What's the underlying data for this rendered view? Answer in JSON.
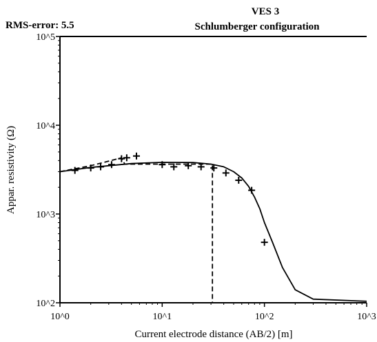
{
  "chart_data": {
    "type": "scatter",
    "title": "VES 3",
    "subtitle": "Schlumberger configuration",
    "annotation": "RMS-error: 5.5",
    "xlabel": "Current electrode distance (AB/2) [m]",
    "ylabel": "Appar. resistivity (Ω)",
    "x_scale": "log",
    "y_scale": "log",
    "xlim": [
      1,
      1000
    ],
    "ylim": [
      100,
      100000
    ],
    "x_ticks": [
      1,
      10,
      100,
      1000
    ],
    "x_tick_labels": [
      "10^0",
      "10^1",
      "10^2",
      "10^3"
    ],
    "y_ticks": [
      100,
      1000,
      10000,
      100000
    ],
    "y_tick_labels": [
      "10^2",
      "10^3",
      "10^4",
      "10^5"
    ],
    "grid": false,
    "series": [
      {
        "style": "markers",
        "marker": "plus",
        "points": [
          {
            "x": 1.4,
            "y": 3100
          },
          {
            "x": 2.0,
            "y": 3300
          },
          {
            "x": 2.5,
            "y": 3400
          },
          {
            "x": 3.2,
            "y": 3600
          },
          {
            "x": 4.0,
            "y": 4200
          },
          {
            "x": 4.5,
            "y": 4300
          },
          {
            "x": 5.6,
            "y": 4500
          },
          {
            "x": 10,
            "y": 3600
          },
          {
            "x": 13,
            "y": 3400
          },
          {
            "x": 18,
            "y": 3500
          },
          {
            "x": 24,
            "y": 3400
          },
          {
            "x": 32,
            "y": 3300
          },
          {
            "x": 42,
            "y": 2900
          },
          {
            "x": 56,
            "y": 2400
          },
          {
            "x": 75,
            "y": 1850
          },
          {
            "x": 100,
            "y": 480
          }
        ]
      },
      {
        "style": "solid",
        "points": [
          {
            "x": 1,
            "y": 3000
          },
          {
            "x": 2,
            "y": 3350
          },
          {
            "x": 5,
            "y": 3700
          },
          {
            "x": 10,
            "y": 3820
          },
          {
            "x": 20,
            "y": 3800
          },
          {
            "x": 30,
            "y": 3650
          },
          {
            "x": 40,
            "y": 3400
          },
          {
            "x": 50,
            "y": 3000
          },
          {
            "x": 60,
            "y": 2550
          },
          {
            "x": 70,
            "y": 2050
          },
          {
            "x": 80,
            "y": 1550
          },
          {
            "x": 90,
            "y": 1150
          },
          {
            "x": 100,
            "y": 800
          },
          {
            "x": 120,
            "y": 480
          },
          {
            "x": 150,
            "y": 250
          },
          {
            "x": 200,
            "y": 140
          },
          {
            "x": 300,
            "y": 110
          },
          {
            "x": 1000,
            "y": 104
          }
        ]
      },
      {
        "style": "dashed",
        "points": [
          {
            "x": 1,
            "y": 3000
          },
          {
            "x": 2,
            "y": 3500
          },
          {
            "x": 4,
            "y": 4300
          },
          {
            "x": 4.3,
            "y": 3650
          },
          {
            "x": 31,
            "y": 3650
          },
          {
            "x": 31,
            "y": 100
          }
        ]
      }
    ]
  }
}
